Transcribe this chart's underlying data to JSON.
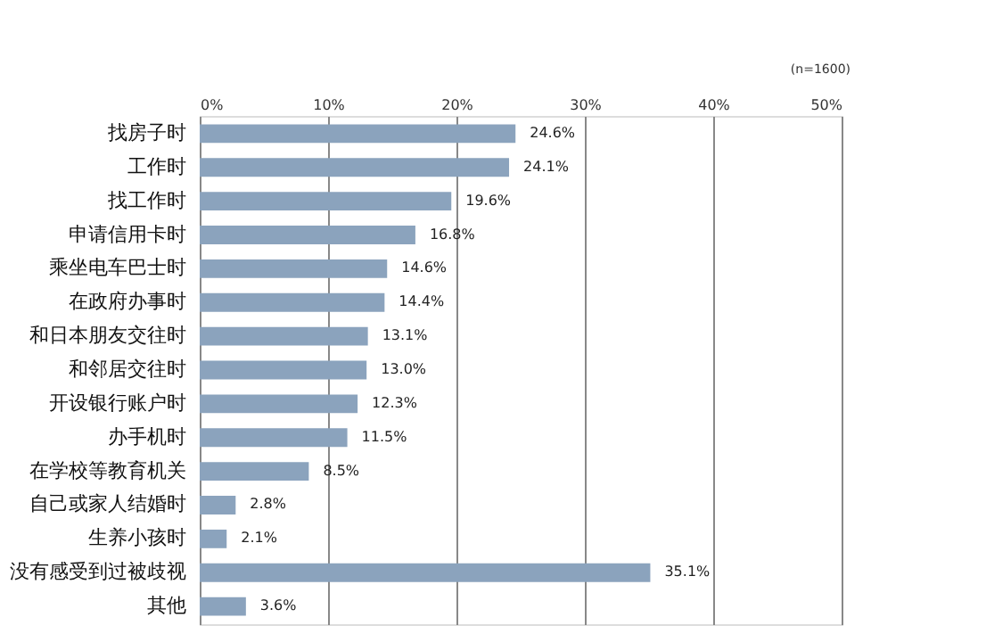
{
  "chart_data": {
    "type": "bar",
    "orientation": "horizontal",
    "categories": [
      "找房子时",
      "工作时",
      "找工作时",
      "申请信用卡时",
      "乘坐电车巴士时",
      "在政府办事时",
      "和日本朋友交往时",
      "和邻居交往时",
      "开设银行账户时",
      "办手机时",
      "在学校等教育机关",
      "自己或家人结婚时",
      "生养小孩时",
      "没有感受到过被歧视",
      "其他"
    ],
    "values": [
      24.6,
      24.1,
      19.6,
      16.8,
      14.6,
      14.4,
      13.1,
      13.0,
      12.3,
      11.5,
      8.5,
      2.8,
      2.1,
      35.1,
      3.6
    ],
    "value_labels": [
      "24.6%",
      "24.1%",
      "19.6%",
      "16.8%",
      "14.6%",
      "14.4%",
      "13.1%",
      "13.0%",
      "12.3%",
      "11.5%",
      "8.5%",
      "2.8%",
      "2.1%",
      "35.1%",
      "3.6%"
    ],
    "color": "#8ba3bd",
    "xlim": [
      0,
      50
    ],
    "xticks": [
      {
        "value": 0,
        "label": "0%"
      },
      {
        "value": 10,
        "label": "10%"
      },
      {
        "value": 20,
        "label": "20%"
      },
      {
        "value": 30,
        "label": "30%"
      },
      {
        "value": 40,
        "label": "40%"
      },
      {
        "value": 50,
        "label": "50%"
      }
    ],
    "grid": "x",
    "annotations": [
      "(n=1600)"
    ]
  }
}
